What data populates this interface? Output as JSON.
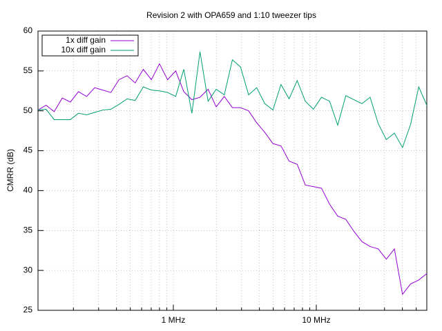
{
  "chart_data": {
    "type": "line",
    "title": "Revision 2 with OPA659 and 1:10 tweezer tips",
    "y_label": "CMRR (dB)",
    "x_scale": "log",
    "grid": true,
    "legend": "top-left",
    "x": [
      113000,
      128700,
      146700,
      167100,
      190400,
      216900,
      247200,
      281600,
      320800,
      365600,
      416500,
      474600,
      540800,
      616100,
      702000,
      799800,
      911400,
      1038300,
      1183000,
      1348000,
      1536000,
      1750000,
      1994000,
      2272000,
      2588000,
      2949000,
      3360000,
      3828000,
      4362000,
      4970000,
      5662000,
      6451000,
      7350000,
      8375000,
      9543000,
      10873000,
      12388000,
      14115000,
      16080000,
      18320000,
      20880000,
      23790000,
      27100000,
      30880000,
      35180000,
      40090000,
      45670000,
      52040000,
      59290000
    ],
    "xlim": [
      113000,
      59290000
    ],
    "xticks": [
      {
        "value": 1000000,
        "label": "1 MHz"
      },
      {
        "value": 10000000,
        "label": "10 MHz"
      }
    ],
    "xminorticks": [
      200000,
      300000,
      400000,
      500000,
      600000,
      700000,
      800000,
      900000,
      2000000,
      3000000,
      4000000,
      5000000,
      6000000,
      7000000,
      8000000,
      9000000,
      20000000,
      30000000,
      40000000,
      50000000
    ],
    "ylim": [
      25,
      60
    ],
    "yticks": [
      25,
      30,
      35,
      40,
      45,
      50,
      55,
      60
    ],
    "series": [
      {
        "name": "1x diff gain",
        "color": "#9400d3",
        "values": [
          50.1,
          50.7,
          49.9,
          51.6,
          51.1,
          52.4,
          51.8,
          52.9,
          52.6,
          52.3,
          53.9,
          54.4,
          53.5,
          55.2,
          53.9,
          55.9,
          53.9,
          55.0,
          52.4,
          51.4,
          51.7,
          52.7,
          50.5,
          51.8,
          50.4,
          50.4,
          50.0,
          48.5,
          47.3,
          45.9,
          45.6,
          43.7,
          43.3,
          40.7,
          40.5,
          40.3,
          38.3,
          36.8,
          36.4,
          34.9,
          33.6,
          33.0,
          32.7,
          31.4,
          32.7,
          27.0,
          28.3,
          28.8,
          29.6
        ]
      },
      {
        "name": "10x diff gain",
        "color": "#009e73",
        "values": [
          50.1,
          50.2,
          48.9,
          48.9,
          48.9,
          49.7,
          49.5,
          49.8,
          50.1,
          50.2,
          50.8,
          51.5,
          51.3,
          53.0,
          52.6,
          52.5,
          52.3,
          51.8,
          55.2,
          49.7,
          57.4,
          51.2,
          52.7,
          52.0,
          56.4,
          55.5,
          52.0,
          52.9,
          50.9,
          50.1,
          53.3,
          51.5,
          53.8,
          51.2,
          50.2,
          51.7,
          51.2,
          48.2,
          51.9,
          51.4,
          50.9,
          51.7,
          48.4,
          46.4,
          47.2,
          45.4,
          48.3,
          53.0,
          50.7
        ]
      }
    ]
  }
}
